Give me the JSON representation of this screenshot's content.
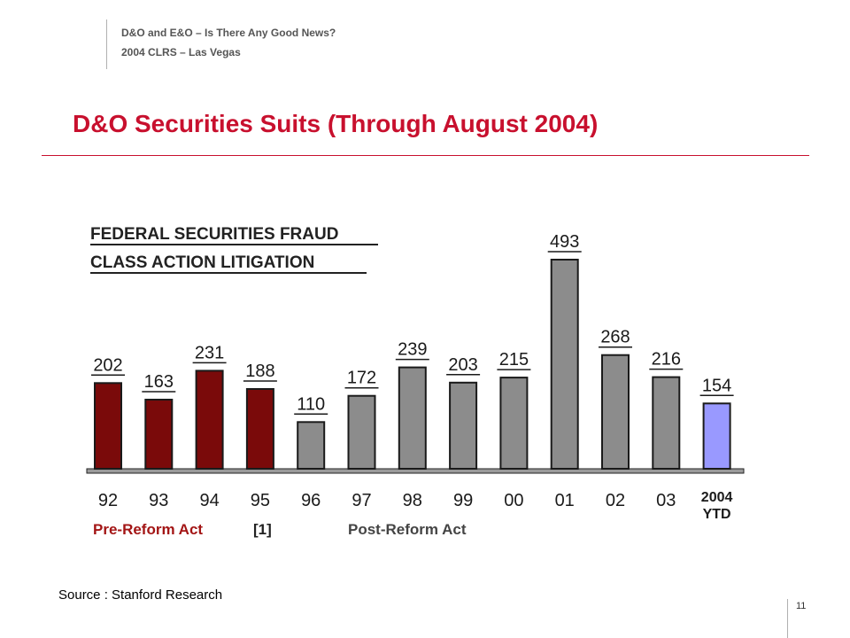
{
  "header": {
    "line1": "D&O and E&O – Is There Any Good News?",
    "line2": "2004 CLRS – Las Vegas"
  },
  "slide_title": "D&O Securities Suits (Through August 2004)",
  "source": "Source : Stanford Research",
  "page_number": "11",
  "colors": {
    "accent": "#c8102e",
    "pre_reform": "#7a0a0a",
    "post_reform": "#8c8c8c",
    "ytd": "#9999ff"
  },
  "chart_data": {
    "type": "bar",
    "title_lines": [
      "FEDERAL SECURITIES FRAUD",
      "CLASS ACTION LITIGATION"
    ],
    "categories": [
      "92",
      "93",
      "94",
      "95",
      "96",
      "97",
      "98",
      "99",
      "00",
      "01",
      "02",
      "03",
      "2004 YTD"
    ],
    "values": [
      202,
      163,
      231,
      188,
      110,
      172,
      239,
      203,
      215,
      493,
      268,
      216,
      154
    ],
    "groups": [
      "pre",
      "pre",
      "pre",
      "pre",
      "post",
      "post",
      "post",
      "post",
      "post",
      "post",
      "post",
      "post",
      "ytd"
    ],
    "legend": {
      "pre_reform": "Pre-Reform Act",
      "note": "[1]",
      "post_reform": "Post-Reform Act"
    },
    "xlabel": "",
    "ylabel": "",
    "ylim": [
      0,
      520
    ],
    "grid": false
  }
}
